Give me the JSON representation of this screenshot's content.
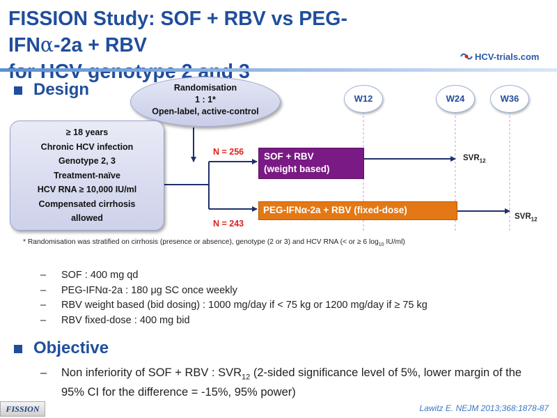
{
  "slide": {
    "title_line1": "FISSION Study: SOF + RBV vs PEG-IFN",
    "title_alpha": "α",
    "title_line1_end": "-2a + RBV",
    "title_line2": "for HCV genotype 2 and 3",
    "logo_text": "HCV-trials.com"
  },
  "design": {
    "heading": "Design",
    "randomisation": [
      "Randomisation",
      "1 : 1*",
      "Open-label, active-control"
    ],
    "criteria": [
      "≥ 18 years",
      "Chronic HCV infection",
      "Genotype 2, 3",
      "Treatment-naïve",
      "HCV RNA ≥ 10,000 IU/ml",
      "Compensated cirrhosis",
      "allowed"
    ],
    "weeks": [
      "W12",
      "W24",
      "W36"
    ],
    "arm1": {
      "n": "N = 256",
      "line1": "SOF + RBV",
      "line2": "(weight based)",
      "outcome": "SVR",
      "outcome_sub": "12"
    },
    "arm2": {
      "n": "N = 243",
      "label": "PEG-IFNα-2a + RBV (fixed-dose)",
      "outcome": "SVR",
      "outcome_sub": "12"
    },
    "footnote_main": "* Randomisation was stratified on cirrhosis (presence or absence), genotype (2 or 3) and HCV RNA (< or ≥ 6 log",
    "footnote_sub": "10",
    "footnote_end": " IU/ml)",
    "items": [
      "SOF : 400 mg qd",
      "PEG-IFNα-2a : 180 μg SC once weekly",
      "RBV weight based (bid dosing) : 1000 mg/day  if < 75 kg or 1200 mg/day  if ≥ 75 kg",
      "RBV fixed-dose : 400 mg bid"
    ],
    "dash": "–"
  },
  "objective": {
    "heading": "Objective",
    "text_before": "Non inferiority of SOF + RBV : SVR",
    "text_sub": "12",
    "text_after": " (2-sided significance level of 5%, lower margin of the 95% CI for the difference = -15%, 95% power)"
  },
  "footer": {
    "badge": "FISSION",
    "reference": "Lawitz  E. NEJM 2013;368:1878-87"
  },
  "colors": {
    "title_blue": "#1f4e9c",
    "arm1_purple": "#7a1a84",
    "arm2_orange": "#e47814",
    "n_red": "#e0211b",
    "dashed_pink": "#d9a7dd"
  }
}
